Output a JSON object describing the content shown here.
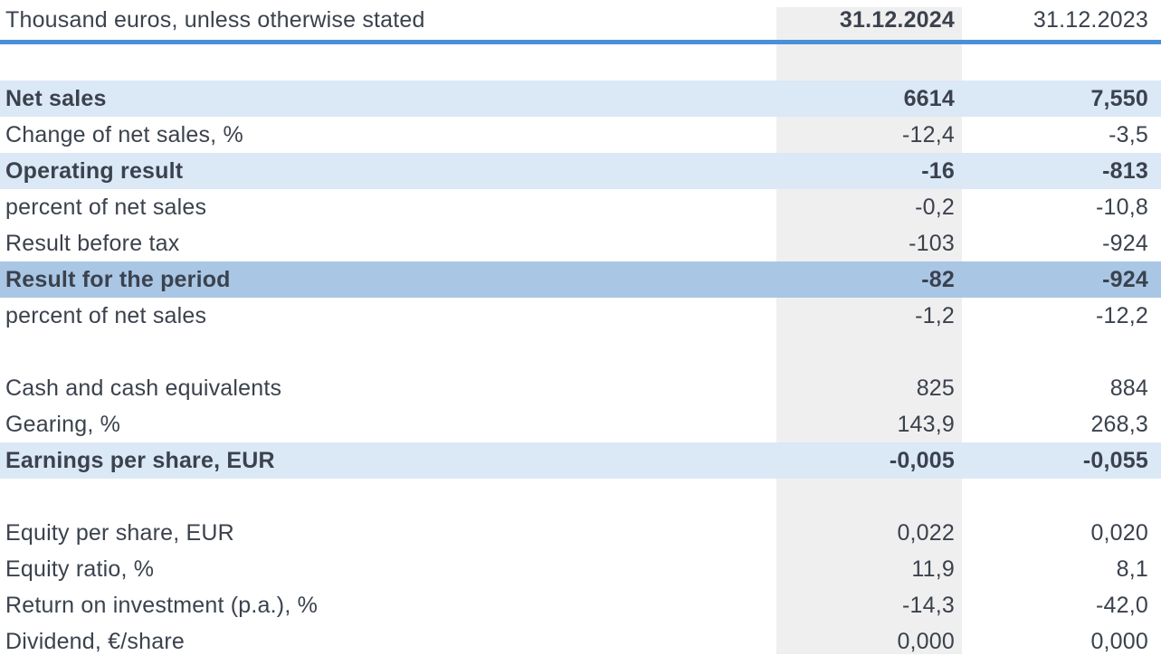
{
  "header": {
    "unit_note": "Thousand euros, unless otherwise stated",
    "col_2024": "31.12.2024",
    "col_2023": "31.12.2023"
  },
  "colors": {
    "header_rule_blue": "#4a90d8",
    "row_highlight_light": "#dbe8f6",
    "row_highlight_strong": "#a9c6e5",
    "column_band_gray": "#f0efef",
    "text": "#3b424d"
  },
  "rows": [
    {
      "spacer": true
    },
    {
      "label": "Net sales",
      "v2024": "6614",
      "v2023": "7,550",
      "highlight": "light",
      "bold": true
    },
    {
      "label": "Change of net sales, %",
      "v2024": "-12,4",
      "v2023": "-3,5",
      "highlight": "none",
      "bold": false
    },
    {
      "label": "Operating result",
      "v2024": "-16",
      "v2023": "-813",
      "highlight": "light",
      "bold": true
    },
    {
      "label": "percent of net sales",
      "v2024": "-0,2",
      "v2023": "-10,8",
      "highlight": "none",
      "bold": false
    },
    {
      "label": "Result before tax",
      "v2024": "-103",
      "v2023": "-924",
      "highlight": "none",
      "bold": false
    },
    {
      "label": "Result for the period",
      "v2024": "-82",
      "v2023": "-924",
      "highlight": "strong",
      "bold": true
    },
    {
      "label": "percent of net sales",
      "v2024": "-1,2",
      "v2023": "-12,2",
      "highlight": "none",
      "bold": false
    },
    {
      "spacer": true
    },
    {
      "label": "Cash and cash equivalents",
      "v2024": "825",
      "v2023": "884",
      "highlight": "none",
      "bold": false
    },
    {
      "label": "Gearing, %",
      "v2024": "143,9",
      "v2023": "268,3",
      "highlight": "none",
      "bold": false
    },
    {
      "label": "Earnings per share, EUR",
      "v2024": "-0,005",
      "v2023": "-0,055",
      "highlight": "light",
      "bold": true
    },
    {
      "spacer": true
    },
    {
      "label": "Equity per share, EUR",
      "v2024": "0,022",
      "v2023": "0,020",
      "highlight": "none",
      "bold": false
    },
    {
      "label": "Equity ratio, %",
      "v2024": "11,9",
      "v2023": "8,1",
      "highlight": "none",
      "bold": false
    },
    {
      "label": "Return on investment (p.a.), %",
      "v2024": "-14,3",
      "v2023": "-42,0",
      "highlight": "none",
      "bold": false
    },
    {
      "label": "Dividend, €/share",
      "v2024": "0,000",
      "v2023": "0,000",
      "highlight": "none",
      "bold": false
    }
  ]
}
